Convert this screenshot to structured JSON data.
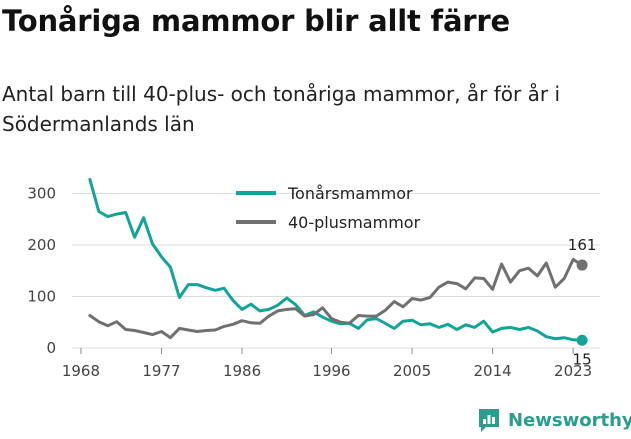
{
  "title": "Tonåriga mammor blir allt färre",
  "subtitle": "Antal barn till 40-plus- och tonåriga mammor, år för år i Södermanlands län",
  "brand": {
    "name": "Newsworthy"
  },
  "colors": {
    "teen": "#10a49a",
    "forty": "#707070",
    "grid": "#dddddd",
    "text": "#444444"
  },
  "chart_data": {
    "type": "line",
    "x": [
      1969,
      1970,
      1971,
      1972,
      1973,
      1974,
      1975,
      1976,
      1977,
      1978,
      1979,
      1980,
      1981,
      1982,
      1983,
      1984,
      1985,
      1986,
      1987,
      1988,
      1989,
      1990,
      1991,
      1992,
      1993,
      1994,
      1995,
      1996,
      1997,
      1998,
      1999,
      2000,
      2001,
      2002,
      2003,
      2004,
      2005,
      2006,
      2007,
      2008,
      2009,
      2010,
      2011,
      2012,
      2013,
      2014,
      2015,
      2016,
      2017,
      2018,
      2019,
      2020,
      2021,
      2022,
      2023,
      2024
    ],
    "xticks": [
      1968,
      1977,
      1986,
      1996,
      2005,
      2014,
      2023
    ],
    "yticks": [
      0,
      100,
      200,
      300
    ],
    "ylim": [
      0,
      330
    ],
    "xlim": [
      1967,
      2026
    ],
    "series": [
      {
        "name": "Tonårsmammor",
        "color": "#10a49a",
        "values": [
          327,
          265,
          255,
          260,
          263,
          215,
          253,
          202,
          177,
          157,
          98,
          123,
          123,
          117,
          112,
          116,
          92,
          75,
          85,
          72,
          75,
          83,
          97,
          84,
          63,
          70,
          60,
          52,
          47,
          48,
          38,
          55,
          57,
          48,
          38,
          52,
          54,
          45,
          47,
          40,
          46,
          36,
          45,
          40,
          52,
          31,
          38,
          40,
          36,
          40,
          33,
          22,
          18,
          20,
          16,
          15
        ],
        "end_label": "15"
      },
      {
        "name": "40-plusmammor",
        "color": "#707070",
        "values": [
          63,
          51,
          43,
          51,
          36,
          34,
          30,
          26,
          32,
          20,
          38,
          35,
          32,
          34,
          35,
          42,
          46,
          53,
          49,
          48,
          62,
          72,
          75,
          76,
          62,
          65,
          78,
          57,
          50,
          48,
          63,
          62,
          62,
          73,
          90,
          80,
          96,
          93,
          98,
          118,
          128,
          125,
          115,
          136,
          135,
          114,
          163,
          128,
          150,
          155,
          140,
          165,
          118,
          135,
          172,
          161
        ],
        "end_label": "161"
      }
    ]
  }
}
